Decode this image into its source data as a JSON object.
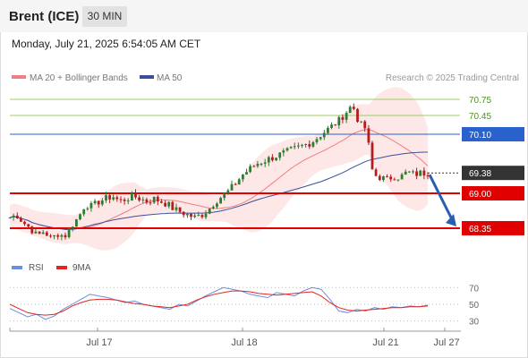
{
  "header": {
    "instrument": "Brent (ICE)",
    "timeframe": "30 MIN",
    "datetime": "Monday, July 21, 2025 6:54:05 AM CET"
  },
  "legend": {
    "ma20_bb": "MA 20 + Bollinger Bands",
    "ma50": "MA 50",
    "rsi": "RSI",
    "ma9": "9MA"
  },
  "credit": "Research © 2025 Trading Central",
  "colors": {
    "bullish": "#2e7d32",
    "bearish": "#b71c1c",
    "resistance": "#9ccc65",
    "pivot": "#2962cc",
    "support": "#e10000",
    "last_price": "#333333",
    "ma20": "#f08080",
    "bollinger_fill": "#fde3e3",
    "ma50": "#3b4f9a",
    "rsi_line": "#6a8fe0",
    "rsi_ma": "#e32424",
    "forecast_arrow": "#2a5db0"
  },
  "icons": {
    "forecast_arrow": "down-arrow-icon"
  },
  "chart_data": [
    {
      "type": "candlestick",
      "ylim": [
        67.9,
        71.0
      ],
      "x_ticks": [
        "Jul 17",
        "Jul 18",
        "Jul 21",
        "Jul 27"
      ],
      "levels": [
        {
          "label": "70.75",
          "value": 70.75,
          "kind": "resistance"
        },
        {
          "label": "70.45",
          "value": 70.45,
          "kind": "resistance"
        },
        {
          "label": "70.10",
          "value": 70.1,
          "kind": "pivot"
        },
        {
          "label": "69.38",
          "value": 69.38,
          "kind": "last"
        },
        {
          "label": "69.00",
          "value": 69.0,
          "kind": "support"
        },
        {
          "label": "68.35",
          "value": 68.35,
          "kind": "support"
        }
      ],
      "path_points": [
        68.55,
        68.6,
        68.45,
        68.35,
        68.2,
        68.3,
        68.15,
        68.25,
        68.2,
        68.4,
        68.55,
        68.8,
        68.75,
        68.85,
        68.9,
        68.95,
        68.85,
        68.9,
        68.95,
        68.9,
        68.85,
        68.9,
        68.85,
        68.8,
        68.7,
        68.65,
        68.6,
        68.55,
        68.6,
        68.7,
        68.85,
        68.95,
        69.05,
        69.2,
        69.35,
        69.45,
        69.55,
        69.6,
        69.65,
        69.7,
        69.75,
        69.8,
        69.85,
        69.9,
        69.95,
        70.05,
        70.15,
        70.25,
        70.35,
        70.5,
        70.65,
        70.3,
        70.2,
        69.35,
        69.3,
        69.25,
        69.32,
        69.3,
        69.4,
        69.35,
        69.38,
        69.38
      ],
      "forecast": {
        "from": 69.38,
        "to": 68.35
      }
    },
    {
      "type": "line",
      "series": [
        {
          "name": "RSI",
          "values": [
            45,
            40,
            35,
            38,
            32,
            36,
            44,
            50,
            56,
            62,
            60,
            58,
            55,
            52,
            54,
            50,
            48,
            46,
            44,
            50,
            48,
            54,
            60,
            65,
            70,
            68,
            66,
            62,
            60,
            58,
            64,
            62,
            60,
            66,
            70,
            68,
            56,
            42,
            40,
            44,
            42,
            46,
            44,
            47,
            46,
            48,
            47,
            49
          ]
        },
        {
          "name": "9MA",
          "values": [
            50,
            45,
            40,
            38,
            37,
            38,
            42,
            48,
            52,
            55,
            56,
            56,
            55,
            53,
            51,
            50,
            48,
            47,
            46,
            48,
            50,
            55,
            59,
            62,
            64,
            66,
            66,
            65,
            63,
            62,
            61,
            62,
            63,
            64,
            65,
            60,
            52,
            46,
            43,
            42,
            43,
            44,
            45,
            46,
            46,
            47,
            47,
            48
          ]
        }
      ],
      "ylim": [
        20,
        80
      ],
      "y_ticks": [
        "70",
        "50",
        "30"
      ]
    }
  ]
}
